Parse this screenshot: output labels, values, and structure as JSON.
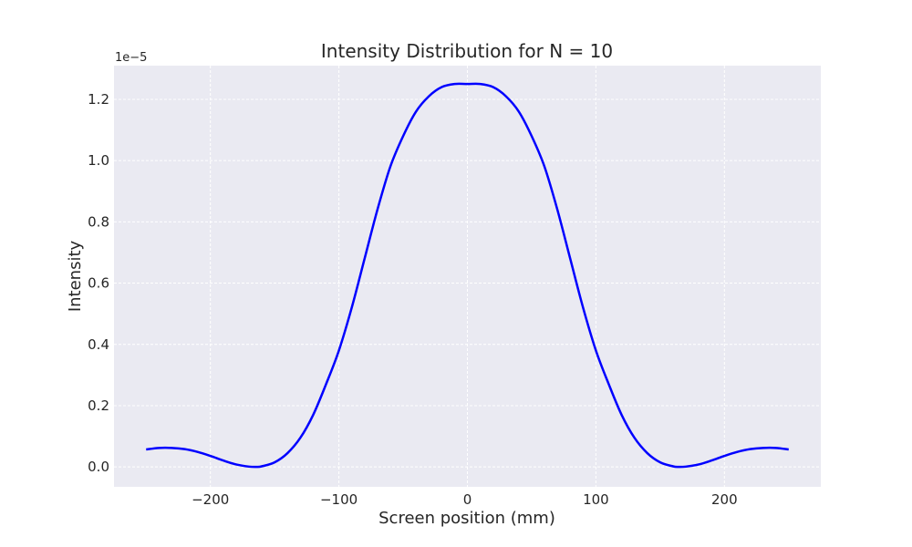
{
  "chart_data": {
    "type": "line",
    "title": "Intensity Distribution for N = 10",
    "xlabel": "Screen position (mm)",
    "ylabel": "Intensity",
    "y_offset_label": "1e−5",
    "xlim": [
      -275,
      275
    ],
    "ylim": [
      -0.065,
      1.31
    ],
    "x_ticks": [
      -200,
      -100,
      0,
      100,
      200
    ],
    "x_tick_labels": [
      "−200",
      "−100",
      "0",
      "100",
      "200"
    ],
    "y_ticks": [
      0.0,
      0.2,
      0.4,
      0.6,
      0.8,
      1.0,
      1.2
    ],
    "y_tick_labels": [
      "0.0",
      "0.2",
      "0.4",
      "0.6",
      "0.8",
      "1.0",
      "1.2"
    ],
    "grid": true,
    "series": [
      {
        "color": "#0000ff",
        "x": [
          -250,
          -240,
          -230,
          -220,
          -210,
          -200,
          -190,
          -180,
          -170,
          -164,
          -160,
          -150,
          -140,
          -130,
          -120,
          -110,
          -100,
          -90,
          -80,
          -70,
          -60,
          -50,
          -40,
          -30,
          -20,
          -10,
          0,
          10,
          20,
          30,
          40,
          50,
          60,
          70,
          80,
          90,
          100,
          110,
          120,
          130,
          140,
          150,
          160,
          164,
          170,
          180,
          190,
          200,
          210,
          220,
          230,
          240,
          250
        ],
        "y": [
          0.057,
          0.062,
          0.062,
          0.058,
          0.049,
          0.036,
          0.021,
          0.008,
          0.001,
          0.0,
          0.002,
          0.015,
          0.045,
          0.095,
          0.17,
          0.27,
          0.38,
          0.52,
          0.68,
          0.84,
          0.98,
          1.08,
          1.16,
          1.21,
          1.24,
          1.25,
          1.25,
          1.25,
          1.24,
          1.21,
          1.16,
          1.08,
          0.98,
          0.84,
          0.68,
          0.52,
          0.38,
          0.27,
          0.17,
          0.095,
          0.045,
          0.015,
          0.002,
          0.0,
          0.001,
          0.008,
          0.021,
          0.036,
          0.049,
          0.058,
          0.062,
          0.062,
          0.057
        ]
      }
    ]
  },
  "colors": {
    "plot_background": "#eaeaf2",
    "grid": "#ffffff",
    "line": "#0000ff"
  }
}
